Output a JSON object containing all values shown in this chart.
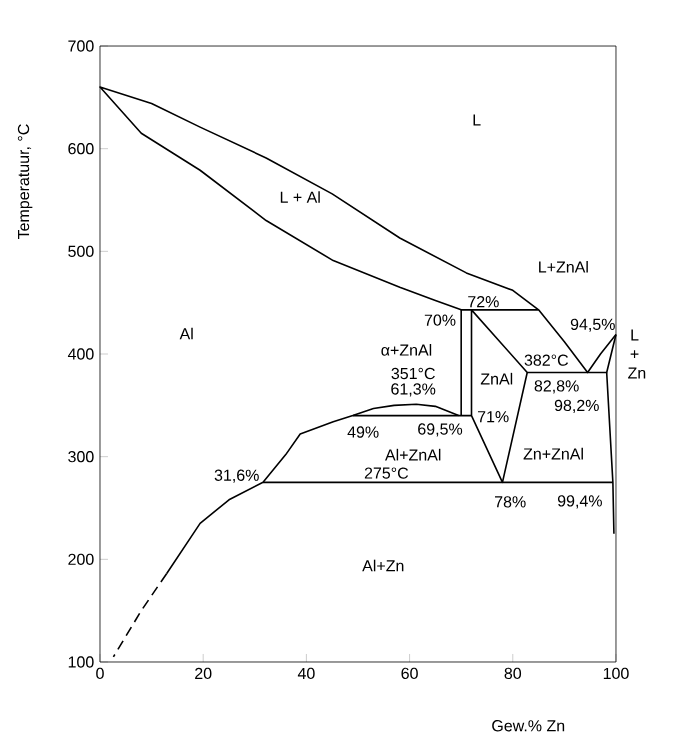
{
  "chart_data": {
    "type": "line",
    "xlabel": "Gew.% Zn",
    "ylabel": "Temperatuur, °C",
    "xlim": [
      0,
      100
    ],
    "ylim": [
      100,
      700
    ],
    "xticks": [
      0,
      20,
      40,
      60,
      80,
      100
    ],
    "yticks": [
      100,
      200,
      300,
      400,
      500,
      600,
      700
    ],
    "grid": false,
    "marker": "none",
    "line_style": "solid",
    "series": [
      {
        "color": "#000000",
        "x": [
          100,
          97,
          94.5,
          90,
          85,
          80,
          71,
          58.1,
          45,
          32.2,
          19.4,
          10,
          0,
          8,
          19.4,
          32.2,
          45.2,
          58.1,
          65,
          70,
          72,
          85
        ],
        "values": [
          419,
          400,
          382,
          412,
          443,
          462,
          479,
          513,
          556,
          591,
          621,
          644,
          660,
          615,
          579,
          530,
          491,
          465,
          452,
          443,
          443,
          443
        ]
      },
      {
        "color": "#000000",
        "x": [
          70,
          70
        ],
        "values": [
          443,
          340
        ]
      },
      {
        "color": "#000000",
        "x": [
          12.9,
          19.4,
          25,
          31.6,
          36,
          38.8,
          45.2,
          49,
          53,
          57,
          61.3,
          65,
          69.5
        ],
        "values": [
          186,
          235,
          258,
          275,
          302,
          322,
          334,
          340,
          347,
          350,
          351,
          349,
          340
        ]
      },
      {
        "color": "#000000",
        "x": [
          49,
          72,
          72,
          82.8,
          78,
          72
        ],
        "values": [
          340,
          340,
          443,
          382,
          275,
          340
        ]
      },
      {
        "color": "#000000",
        "x": [
          31.6,
          99.4
        ],
        "values": [
          275,
          275
        ]
      },
      {
        "color": "#000000",
        "x": [
          82.8,
          98.2,
          100
        ],
        "values": [
          382,
          382,
          419
        ]
      },
      {
        "color": "#000000",
        "x": [
          98.2,
          99.4,
          99.6
        ],
        "values": [
          382,
          275,
          225
        ]
      },
      {
        "color": "#000000",
        "x": [
          12.9,
          8,
          2.6
        ],
        "values": [
          186,
          150,
          105
        ],
        "line_style": "dashed"
      }
    ],
    "annotations": [
      "L",
      "L + Al",
      "Al",
      "L+ZnAl",
      "72%",
      "70%",
      "94,5%",
      "L + Zn",
      "α+ZnAl",
      "382°C",
      "351°C",
      "61,3%",
      "ZnAl",
      "82,8%",
      "98,2%",
      "49%",
      "69,5%",
      "71%",
      "Al+ZnAl",
      "Zn+ZnAl",
      "31,6%",
      "275°C",
      "78%",
      "99,4%",
      "Al+Zn"
    ]
  }
}
